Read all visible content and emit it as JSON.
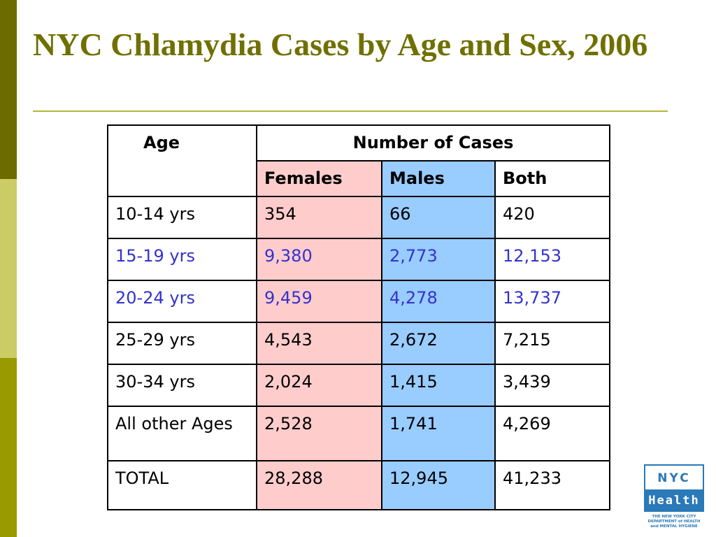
{
  "slide": {
    "title": "NYC Chlamydia Cases by Age and Sex, 2006",
    "colors": {
      "title": "#707000",
      "highlight_text": "#3333cc",
      "females_fill": "#ffcccc",
      "males_fill": "#99ccff",
      "sidebar": [
        "#6b6b00",
        "#cccc66",
        "#999900"
      ]
    }
  },
  "table": {
    "header_age": "Age",
    "header_number_of_cases": "Number of Cases",
    "header_females": "Females",
    "header_males": "Males",
    "header_both": "Both",
    "rows": [
      {
        "age": "10-14 yrs",
        "females": "354",
        "males": "66",
        "both": "420",
        "highlighted": false
      },
      {
        "age": "15-19 yrs",
        "females": "9,380",
        "males": "2,773",
        "both": "12,153",
        "highlighted": true
      },
      {
        "age": "20-24 yrs",
        "females": "9,459",
        "males": "4,278",
        "both": "13,737",
        "highlighted": true
      },
      {
        "age": "25-29 yrs",
        "females": "4,543",
        "males": "2,672",
        "both": "7,215",
        "highlighted": false
      },
      {
        "age": "30-34 yrs",
        "females": "2,024",
        "males": "1,415",
        "both": "3,439",
        "highlighted": false
      },
      {
        "age": "All other Ages",
        "females": "2,528",
        "males": "1,741",
        "both": "4,269",
        "highlighted": false
      },
      {
        "age": "TOTAL",
        "females": "28,288",
        "males": "12,945",
        "both": "41,233",
        "highlighted": false
      }
    ]
  },
  "logo": {
    "line1": "NYC",
    "line2": "Health",
    "dept_lines": [
      "THE NEW YORK CITY",
      "DEPARTMENT of HEALTH",
      "and MENTAL HYGIENE"
    ]
  }
}
